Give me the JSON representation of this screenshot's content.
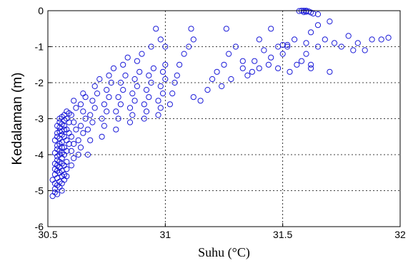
{
  "chart_data": {
    "type": "scatter",
    "xlabel": "Suhu (°C)",
    "ylabel": "Kedalaman (m)",
    "xlim": [
      30.5,
      32
    ],
    "ylim": [
      -6,
      0
    ],
    "xticks": [
      "30.5",
      "31",
      "31.5",
      "32"
    ],
    "yticks": [
      "0",
      "-1",
      "-2",
      "-3",
      "-4",
      "-5",
      "-6"
    ],
    "grid": true,
    "marker_color": "#1a1ad8",
    "series": [
      {
        "points": [
          [
            30.52,
            -5.15
          ],
          [
            30.53,
            -5.05
          ],
          [
            30.54,
            -5.1
          ],
          [
            30.53,
            -4.95
          ],
          [
            30.54,
            -4.85
          ],
          [
            30.53,
            -4.8
          ],
          [
            30.52,
            -4.7
          ],
          [
            30.54,
            -4.65
          ],
          [
            30.53,
            -4.55
          ],
          [
            30.55,
            -4.5
          ],
          [
            30.54,
            -4.45
          ],
          [
            30.53,
            -4.4
          ],
          [
            30.55,
            -4.35
          ],
          [
            30.54,
            -4.3
          ],
          [
            30.53,
            -4.25
          ],
          [
            30.55,
            -4.2
          ],
          [
            30.54,
            -4.15
          ],
          [
            30.56,
            -4.1
          ],
          [
            30.54,
            -4.05
          ],
          [
            30.55,
            -4.0
          ],
          [
            30.53,
            -3.95
          ],
          [
            30.55,
            -3.9
          ],
          [
            30.54,
            -3.85
          ],
          [
            30.56,
            -3.8
          ],
          [
            30.54,
            -3.75
          ],
          [
            30.55,
            -3.7
          ],
          [
            30.53,
            -3.6
          ],
          [
            30.55,
            -3.55
          ],
          [
            30.54,
            -3.5
          ],
          [
            30.56,
            -3.45
          ],
          [
            30.54,
            -3.4
          ],
          [
            30.55,
            -3.35
          ],
          [
            30.57,
            -3.3
          ],
          [
            30.55,
            -3.25
          ],
          [
            30.54,
            -3.2
          ],
          [
            30.56,
            -3.15
          ],
          [
            30.55,
            -3.1
          ],
          [
            30.57,
            -3.05
          ],
          [
            30.55,
            -3.0
          ],
          [
            30.56,
            -2.95
          ],
          [
            30.58,
            -4.6
          ],
          [
            30.57,
            -4.7
          ],
          [
            30.56,
            -4.8
          ],
          [
            30.58,
            -4.4
          ],
          [
            30.57,
            -4.3
          ],
          [
            30.58,
            -4.2
          ],
          [
            30.57,
            -4.0
          ],
          [
            30.58,
            -3.9
          ],
          [
            30.57,
            -3.8
          ],
          [
            30.59,
            -3.7
          ],
          [
            30.58,
            -3.6
          ],
          [
            30.57,
            -3.5
          ],
          [
            30.59,
            -3.4
          ],
          [
            30.58,
            -3.3
          ],
          [
            30.57,
            -3.2
          ],
          [
            30.59,
            -3.1
          ],
          [
            30.58,
            -3.0
          ],
          [
            30.57,
            -2.9
          ],
          [
            30.59,
            -2.85
          ],
          [
            30.58,
            -2.8
          ],
          [
            30.55,
            -4.9
          ],
          [
            30.56,
            -5.0
          ],
          [
            30.55,
            -4.75
          ],
          [
            30.56,
            -4.6
          ],
          [
            30.56,
            -4.45
          ],
          [
            30.56,
            -4.25
          ],
          [
            30.56,
            -3.95
          ],
          [
            30.56,
            -3.65
          ],
          [
            30.56,
            -3.35
          ],
          [
            30.57,
            -4.55
          ],
          [
            30.6,
            -4.3
          ],
          [
            30.61,
            -4.1
          ],
          [
            30.6,
            -3.9
          ],
          [
            30.61,
            -3.7
          ],
          [
            30.6,
            -3.5
          ],
          [
            30.62,
            -3.3
          ],
          [
            30.61,
            -3.1
          ],
          [
            30.6,
            -2.9
          ],
          [
            30.62,
            -2.7
          ],
          [
            30.61,
            -2.5
          ],
          [
            30.63,
            -4.0
          ],
          [
            30.64,
            -3.8
          ],
          [
            30.63,
            -3.6
          ],
          [
            30.65,
            -3.4
          ],
          [
            30.64,
            -3.2
          ],
          [
            30.66,
            -3.0
          ],
          [
            30.65,
            -2.8
          ],
          [
            30.64,
            -2.6
          ],
          [
            30.66,
            -2.4
          ],
          [
            30.65,
            -2.3
          ],
          [
            30.67,
            -4.0
          ],
          [
            30.68,
            -3.6
          ],
          [
            30.67,
            -3.3
          ],
          [
            30.69,
            -3.1
          ],
          [
            30.68,
            -2.9
          ],
          [
            30.7,
            -2.7
          ],
          [
            30.69,
            -2.5
          ],
          [
            30.71,
            -2.3
          ],
          [
            30.7,
            -2.1
          ],
          [
            30.72,
            -1.9
          ],
          [
            30.73,
            -3.5
          ],
          [
            30.74,
            -3.2
          ],
          [
            30.73,
            -3.0
          ],
          [
            30.75,
            -2.8
          ],
          [
            30.74,
            -2.6
          ],
          [
            30.76,
            -2.4
          ],
          [
            30.75,
            -2.2
          ],
          [
            30.77,
            -2.0
          ],
          [
            30.76,
            -1.8
          ],
          [
            30.78,
            -1.6
          ],
          [
            30.79,
            -3.3
          ],
          [
            30.8,
            -3.0
          ],
          [
            30.79,
            -2.8
          ],
          [
            30.81,
            -2.6
          ],
          [
            30.8,
            -2.4
          ],
          [
            30.82,
            -2.2
          ],
          [
            30.81,
            -2.0
          ],
          [
            30.83,
            -1.8
          ],
          [
            30.82,
            -1.5
          ],
          [
            30.84,
            -1.3
          ],
          [
            30.85,
            -3.1
          ],
          [
            30.86,
            -2.9
          ],
          [
            30.85,
            -2.7
          ],
          [
            30.87,
            -2.5
          ],
          [
            30.86,
            -2.3
          ],
          [
            30.88,
            -2.1
          ],
          [
            30.87,
            -1.9
          ],
          [
            30.89,
            -1.7
          ],
          [
            30.88,
            -1.4
          ],
          [
            30.9,
            -1.2
          ],
          [
            30.91,
            -3.0
          ],
          [
            30.92,
            -2.8
          ],
          [
            30.91,
            -2.6
          ],
          [
            30.93,
            -2.4
          ],
          [
            30.92,
            -2.2
          ],
          [
            30.94,
            -2.0
          ],
          [
            30.93,
            -1.8
          ],
          [
            30.95,
            -1.6
          ],
          [
            30.94,
            -1.0
          ],
          [
            30.96,
            -0.5
          ],
          [
            30.97,
            -2.9
          ],
          [
            30.98,
            -2.7
          ],
          [
            30.97,
            -2.5
          ],
          [
            30.99,
            -2.3
          ],
          [
            30.98,
            -2.1
          ],
          [
            31.0,
            -1.9
          ],
          [
            30.99,
            -1.7
          ],
          [
            31.0,
            -1.5
          ],
          [
            31.0,
            -1.0
          ],
          [
            30.98,
            -0.8
          ],
          [
            31.02,
            -2.6
          ],
          [
            31.03,
            -2.3
          ],
          [
            31.04,
            -2.0
          ],
          [
            31.05,
            -1.8
          ],
          [
            31.06,
            -1.5
          ],
          [
            31.08,
            -1.2
          ],
          [
            31.1,
            -1.0
          ],
          [
            31.12,
            -0.8
          ],
          [
            31.11,
            -0.5
          ],
          [
            31.12,
            -2.4
          ],
          [
            31.15,
            -2.5
          ],
          [
            31.18,
            -2.2
          ],
          [
            31.2,
            -1.9
          ],
          [
            31.22,
            -1.7
          ],
          [
            31.25,
            -1.5
          ],
          [
            31.27,
            -1.2
          ],
          [
            31.3,
            -1.0
          ],
          [
            31.26,
            -0.5
          ],
          [
            31.33,
            -1.6
          ],
          [
            31.35,
            -1.8
          ],
          [
            31.38,
            -1.4
          ],
          [
            31.4,
            -1.6
          ],
          [
            31.42,
            -1.1
          ],
          [
            31.45,
            -1.3
          ],
          [
            31.48,
            -1.0
          ],
          [
            31.4,
            -0.8
          ],
          [
            31.45,
            -0.5
          ],
          [
            31.5,
            -1.2
          ],
          [
            31.52,
            -1.0
          ],
          [
            31.55,
            -0.8
          ],
          [
            31.53,
            -1.7
          ],
          [
            31.58,
            -1.4
          ],
          [
            31.6,
            -1.2
          ],
          [
            31.62,
            -1.5
          ],
          [
            31.65,
            -1.0
          ],
          [
            31.68,
            -0.8
          ],
          [
            31.7,
            -1.7
          ],
          [
            31.72,
            -0.9
          ],
          [
            31.75,
            -1.0
          ],
          [
            31.78,
            -0.7
          ],
          [
            31.8,
            -1.1
          ],
          [
            31.82,
            -0.9
          ],
          [
            31.85,
            -1.1
          ],
          [
            31.88,
            -0.8
          ],
          [
            31.92,
            -0.8
          ],
          [
            31.95,
            -0.75
          ],
          [
            31.6,
            -0.9
          ],
          [
            31.62,
            -0.6
          ],
          [
            31.65,
            -0.4
          ],
          [
            31.7,
            -0.3
          ],
          [
            31.58,
            0.0
          ],
          [
            31.59,
            0.0
          ],
          [
            31.6,
            0.0
          ],
          [
            31.61,
            -0.02
          ],
          [
            31.6,
            -0.03
          ],
          [
            31.62,
            -0.05
          ],
          [
            31.63,
            -0.08
          ],
          [
            31.65,
            -0.1
          ],
          [
            31.57,
            -0.01
          ],
          [
            31.59,
            -0.04
          ],
          [
            31.62,
            -1.6
          ],
          [
            31.56,
            -1.5
          ],
          [
            31.52,
            -0.95
          ],
          [
            31.5,
            -0.95
          ],
          [
            31.48,
            -1.6
          ],
          [
            31.44,
            -1.5
          ],
          [
            31.37,
            -1.7
          ],
          [
            31.33,
            -1.4
          ],
          [
            31.28,
            -1.9
          ],
          [
            31.24,
            -2.1
          ]
        ]
      }
    ]
  }
}
